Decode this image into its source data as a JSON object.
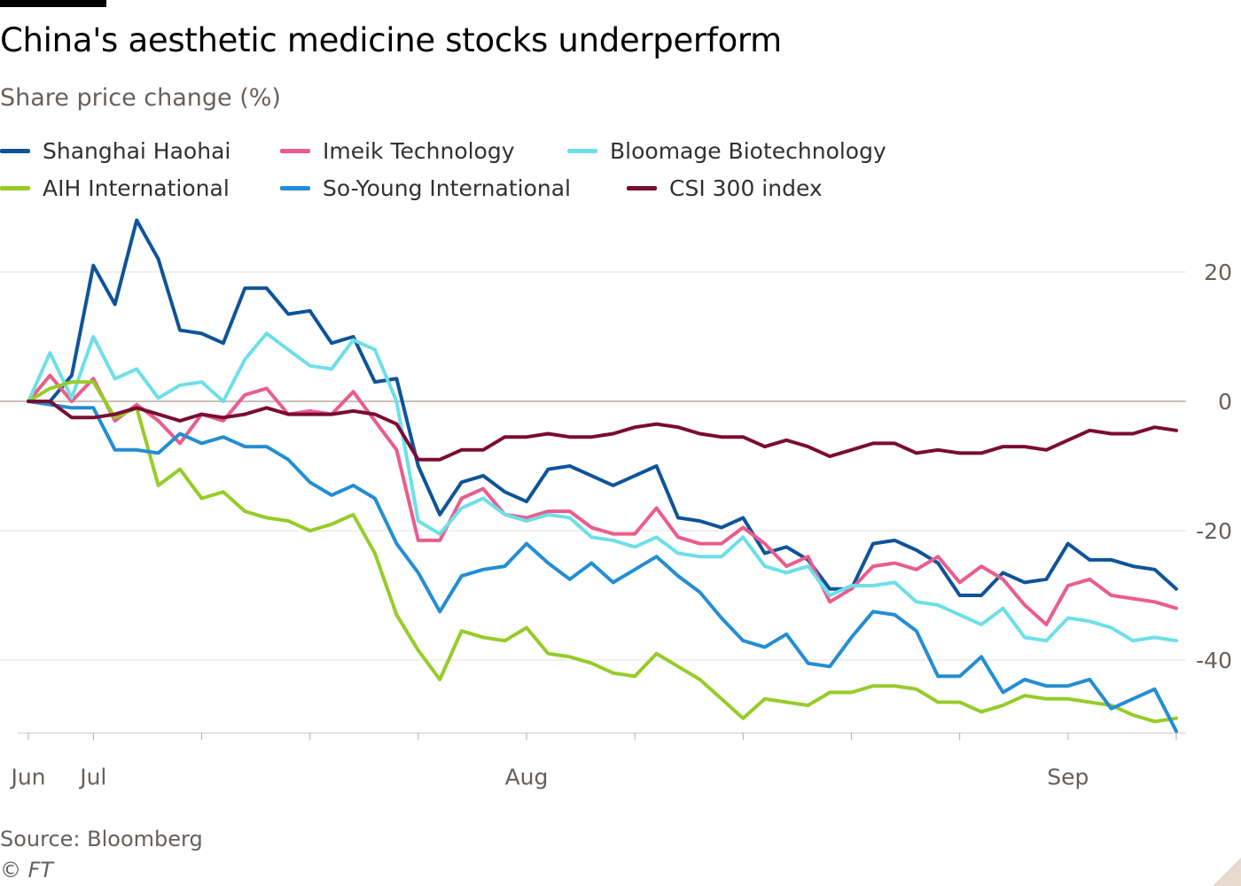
{
  "header": {
    "title": "China's aesthetic medicine stocks underperform",
    "subtitle": "Share price change (%)"
  },
  "footer": {
    "source": "Source: Bloomberg",
    "credit": "© FT"
  },
  "chart_data": {
    "type": "line",
    "title": "China's aesthetic medicine stocks underperform",
    "subtitle": "Share price change (%)",
    "xlabel": "",
    "ylabel": "",
    "ylim": [
      -51,
      25
    ],
    "yticks": [
      20,
      0,
      -20,
      -40
    ],
    "grid": true,
    "legend_position": "top",
    "x_month_labels": [
      {
        "label": "Jun",
        "index": 0
      },
      {
        "label": "Jul",
        "index": 3
      },
      {
        "label": "Aug",
        "index": 23
      },
      {
        "label": "Sep",
        "index": 48
      }
    ],
    "x_minor_ticks": [
      0,
      3,
      8,
      13,
      18,
      23,
      28,
      33,
      38,
      43,
      48,
      53
    ],
    "x_count": 54,
    "series": [
      {
        "name": "Shanghai Haohai",
        "color": "#0f5499",
        "values": [
          0,
          0,
          4,
          21,
          15,
          28,
          22,
          11,
          10.5,
          9,
          17.5,
          17.5,
          13.5,
          14,
          9,
          10,
          3,
          3.5,
          -10,
          -17.5,
          -12.5,
          -11.5,
          -14,
          -15.5,
          -10.5,
          -10,
          -11.5,
          -13,
          -11.5,
          -10,
          -18,
          -18.5,
          -19.5,
          -18,
          -23.5,
          -22.5,
          -24.5,
          -29,
          -29,
          -22,
          -21.5,
          -23,
          -25,
          -30,
          -30,
          -26.5,
          -28,
          -27.5,
          -22,
          -24.5,
          -24.5,
          -25.5,
          -26,
          -29
        ]
      },
      {
        "name": "Imeik Technology",
        "color": "#e95d8c",
        "values": [
          0,
          4,
          0,
          3.5,
          -3,
          -0.5,
          -3,
          -6.5,
          -2,
          -3,
          1,
          2,
          -2,
          -1.5,
          -2,
          1.5,
          -3,
          -7.5,
          -21.5,
          -21.5,
          -15,
          -13.5,
          -17.5,
          -18,
          -17,
          -17,
          -19.5,
          -20.5,
          -20.5,
          -16.5,
          -21,
          -22,
          -22,
          -19.5,
          -22,
          -25.5,
          -24,
          -31,
          -29,
          -25.5,
          -25,
          -26,
          -24,
          -28,
          -25.5,
          -27.5,
          -31.5,
          -34.5,
          -28.5,
          -27.5,
          -30,
          -30.5,
          -31,
          -32
        ]
      },
      {
        "name": "Bloomage Biotechnology",
        "color": "#6edfe7",
        "values": [
          0,
          7.5,
          0.5,
          10,
          3.5,
          5,
          0.5,
          2.5,
          3,
          0,
          6.5,
          10.5,
          8,
          5.5,
          5,
          9.5,
          8,
          0,
          -18.5,
          -20.5,
          -16.5,
          -15,
          -17.5,
          -18.5,
          -17.5,
          -18,
          -21,
          -21.5,
          -22.5,
          -21,
          -23.5,
          -24,
          -24,
          -21,
          -25.5,
          -26.5,
          -25.5,
          -30,
          -28.5,
          -28.5,
          -28,
          -31,
          -31.5,
          -33,
          -34.5,
          -32,
          -36.5,
          -37,
          -33.5,
          -34,
          -35,
          -37,
          -36.5,
          -37
        ]
      },
      {
        "name": "AIH International",
        "color": "#96cc28",
        "values": [
          0,
          2,
          3,
          3,
          -2.5,
          -1,
          -13,
          -10.5,
          -15,
          -14,
          -17,
          -18,
          -18.5,
          -20,
          -19,
          -17.5,
          -23.5,
          -33,
          -38.5,
          -43,
          -35.5,
          -36.5,
          -37,
          -35,
          -39,
          -39.5,
          -40.5,
          -42,
          -42.5,
          -39,
          -41,
          -43,
          -46,
          -49,
          -46,
          -46.5,
          -47,
          -45,
          -45,
          -44,
          -44,
          -44.5,
          -46.5,
          -46.5,
          -48,
          -47,
          -45.5,
          -46,
          -46,
          -46.5,
          -47,
          -48.5,
          -49.5,
          -49
        ]
      },
      {
        "name": "So-Young International",
        "color": "#238ed3",
        "values": [
          0,
          -0.5,
          -1,
          -1,
          -7.5,
          -7.5,
          -8,
          -5,
          -6.5,
          -5.5,
          -7,
          -7,
          -9,
          -12.5,
          -14.5,
          -13,
          -15,
          -22,
          -26.5,
          -32.5,
          -27,
          -26,
          -25.5,
          -22,
          -25,
          -27.5,
          -25,
          -28,
          -26,
          -24,
          -27,
          -29.5,
          -33.5,
          -37,
          -38,
          -36,
          -40.5,
          -41,
          -36.5,
          -32.5,
          -33,
          -35.5,
          -42.5,
          -42.5,
          -39.5,
          -45,
          -43,
          -44,
          -44,
          -43,
          -47.5,
          -46,
          -44.5,
          -51
        ]
      },
      {
        "name": "CSI 300 index",
        "color": "#7a0c32",
        "values": [
          0,
          0,
          -2.5,
          -2.5,
          -2,
          -1,
          -2,
          -3,
          -2,
          -2.5,
          -2,
          -1,
          -2,
          -2,
          -2,
          -1.5,
          -2,
          -3.5,
          -9,
          -9,
          -7.5,
          -7.5,
          -5.5,
          -5.5,
          -5,
          -5.5,
          -5.5,
          -5,
          -4,
          -3.5,
          -4,
          -5,
          -5.5,
          -5.5,
          -7,
          -6,
          -7,
          -8.5,
          -7.5,
          -6.5,
          -6.5,
          -8,
          -7.5,
          -8,
          -8,
          -7,
          -7,
          -7.5,
          -6,
          -4.5,
          -5,
          -5,
          -4,
          -4.5
        ]
      }
    ]
  }
}
